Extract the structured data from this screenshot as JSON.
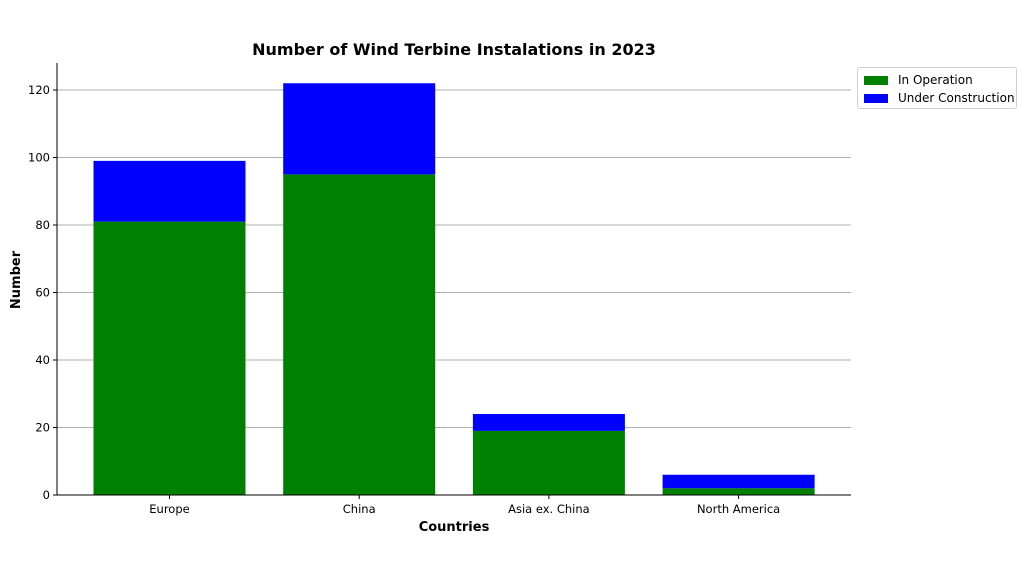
{
  "chart_data": {
    "type": "bar",
    "stacked": true,
    "title": "Number of Wind Terbine Instalations in 2023",
    "xlabel": "Countries",
    "ylabel": "Number",
    "categories": [
      "Europe",
      "China",
      "Asia ex. China",
      "North America"
    ],
    "series": [
      {
        "name": "In Operation",
        "color": "#008000",
        "values": [
          81,
          95,
          19,
          2
        ]
      },
      {
        "name": "Under Construction",
        "color": "#0000ff",
        "values": [
          18,
          27,
          5,
          4
        ]
      }
    ],
    "totals": [
      99,
      122,
      24,
      6
    ],
    "ylim": [
      0,
      128
    ],
    "yticks": [
      0,
      20,
      40,
      60,
      80,
      100,
      120
    ],
    "grid": "y",
    "legend_position": "upper right outside"
  },
  "legend": {
    "items": [
      {
        "label": "In Operation",
        "color": "#008000"
      },
      {
        "label": "Under Construction",
        "color": "#0000ff"
      }
    ]
  }
}
